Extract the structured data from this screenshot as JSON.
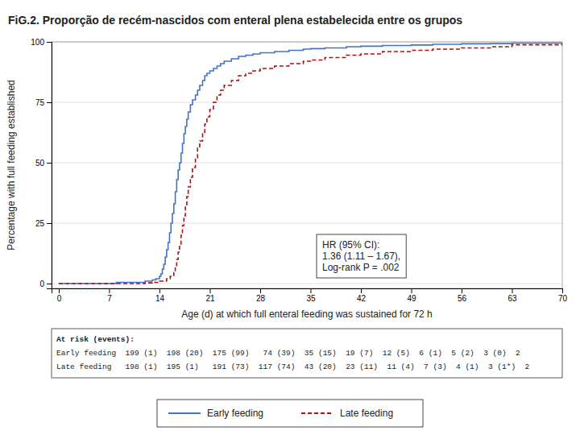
{
  "chart_data": {
    "type": "step",
    "title": "FiG.2. Proporção de recém-nascidos com enteral plena estabelecida entre os grupos",
    "x_label": "Age (d) at which full enteral feeding was sustained for 72 h",
    "y_label": "Percentage with full feeding established",
    "xlim": [
      -1,
      70
    ],
    "ylim": [
      -2,
      100
    ],
    "xticks": [
      0,
      7,
      14,
      21,
      28,
      35,
      42,
      49,
      56,
      63,
      70
    ],
    "yticks": [
      0,
      25,
      50,
      75,
      100
    ],
    "grid": true,
    "legend": "bottom",
    "series": [
      {
        "name": "Early feeding",
        "color": "#4472c4",
        "line_style": "solid",
        "x": [
          0,
          7,
          8,
          9,
          10,
          11,
          12,
          12.5,
          13,
          13.5,
          14,
          14.2,
          14.4,
          14.6,
          14.8,
          15,
          15.2,
          15.4,
          15.6,
          15.8,
          16,
          16.2,
          16.4,
          16.6,
          16.8,
          17,
          17.2,
          17.4,
          17.6,
          17.8,
          18,
          18.3,
          18.6,
          19,
          19.3,
          19.6,
          20,
          20.3,
          20.6,
          21,
          21.5,
          22,
          22.5,
          23,
          24,
          25,
          26,
          27,
          28,
          30,
          32,
          34,
          35,
          37,
          40,
          42,
          45,
          49,
          52,
          56,
          60,
          63,
          70
        ],
        "values": [
          0,
          0,
          0.5,
          0.5,
          0.5,
          0.5,
          1,
          1,
          1.5,
          2,
          3,
          4,
          6,
          8,
          11,
          14,
          17,
          21,
          25,
          29,
          33,
          38,
          43,
          47,
          50,
          54,
          58,
          62,
          65,
          68,
          71,
          74,
          76,
          78,
          80,
          82,
          84,
          86,
          87,
          88,
          89,
          90,
          91,
          92,
          93,
          94,
          94.5,
          95,
          95.5,
          96,
          96.5,
          97,
          97.2,
          97.5,
          98,
          98.2,
          98.5,
          98.7,
          99,
          99.2,
          99.3,
          99.5,
          99.5
        ]
      },
      {
        "name": "Late feeding",
        "color": "#aa1111",
        "line_style": "dashed",
        "x": [
          0,
          10,
          12,
          13,
          14,
          15,
          15.5,
          16,
          16.2,
          16.4,
          16.6,
          16.8,
          17,
          17.2,
          17.4,
          17.6,
          17.8,
          18,
          18.3,
          18.6,
          19,
          19.3,
          19.6,
          20,
          20.3,
          20.6,
          21,
          21.5,
          22,
          22.5,
          23,
          24,
          25,
          26,
          27,
          28,
          30,
          32,
          34,
          35,
          37,
          40,
          42,
          45,
          49,
          52,
          56,
          60,
          63,
          70
        ],
        "values": [
          0,
          0,
          0.3,
          0.5,
          1,
          2,
          3,
          5,
          7,
          10,
          13,
          16,
          20,
          24,
          28,
          32,
          36,
          40,
          44,
          48,
          52,
          56,
          59,
          62,
          66,
          69,
          72,
          75,
          78,
          80,
          82,
          84,
          86,
          87,
          88,
          89,
          90,
          91,
          92,
          92.5,
          93.5,
          94.5,
          95,
          96,
          96.5,
          97,
          97.5,
          98,
          98.8,
          99.5
        ]
      }
    ],
    "annotation": "HR (95% CI):\n1.36 (1.11 – 1.67),\nLog-rank P = .002",
    "risk_table": [
      "At risk (events):",
      "Early feeding  199 (1)  198 (20)  175 (99)   74 (39)  35 (15)  19 (7)  12 (5)  6 (1)  5 (2)  3 (0)  2",
      "Late feeding   198 (1)  195 (1)   191 (73)  117 (74)  43 (20)  23 (11)  11 (4)  7 (3)  4 (1)  3 (1*)  2"
    ]
  }
}
